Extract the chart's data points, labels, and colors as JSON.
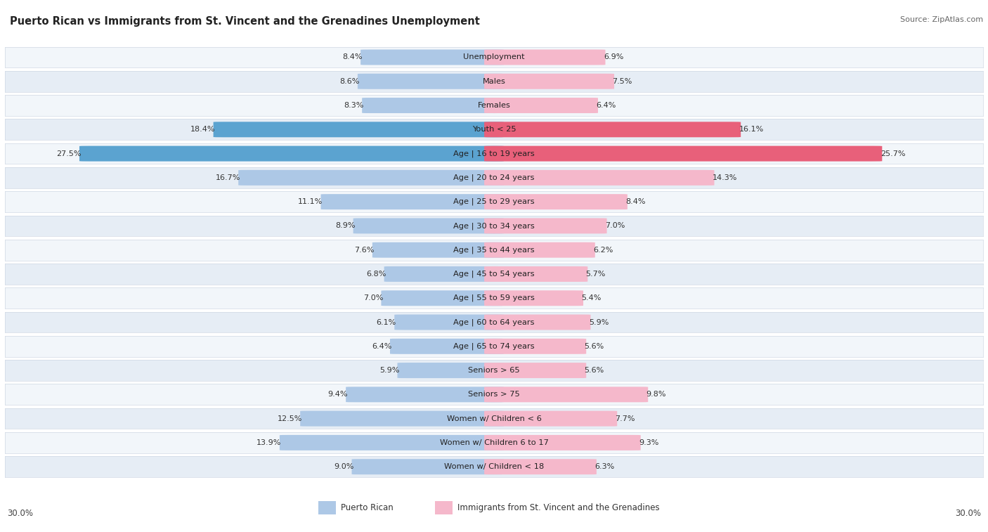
{
  "title": "Puerto Rican vs Immigrants from St. Vincent and the Grenadines Unemployment",
  "source": "Source: ZipAtlas.com",
  "categories": [
    "Unemployment",
    "Males",
    "Females",
    "Youth < 25",
    "Age | 16 to 19 years",
    "Age | 20 to 24 years",
    "Age | 25 to 29 years",
    "Age | 30 to 34 years",
    "Age | 35 to 44 years",
    "Age | 45 to 54 years",
    "Age | 55 to 59 years",
    "Age | 60 to 64 years",
    "Age | 65 to 74 years",
    "Seniors > 65",
    "Seniors > 75",
    "Women w/ Children < 6",
    "Women w/ Children 6 to 17",
    "Women w/ Children < 18"
  ],
  "left_values": [
    8.4,
    8.6,
    8.3,
    18.4,
    27.5,
    16.7,
    11.1,
    8.9,
    7.6,
    6.8,
    7.0,
    6.1,
    6.4,
    5.9,
    9.4,
    12.5,
    13.9,
    9.0
  ],
  "right_values": [
    6.9,
    7.5,
    6.4,
    16.1,
    25.7,
    14.3,
    8.4,
    7.0,
    6.2,
    5.7,
    5.4,
    5.9,
    5.6,
    5.6,
    9.8,
    7.7,
    9.3,
    6.3
  ],
  "left_color_normal": "#adc8e6",
  "right_color_normal": "#f5b8cb",
  "left_color_highlight": "#5ba3d0",
  "right_color_highlight": "#e8607a",
  "highlight_rows": [
    3,
    4
  ],
  "row_bg_light": "#f2f6fa",
  "row_bg_dark": "#e6edf5",
  "row_border_color": "#d0d8e4",
  "legend_left": "Puerto Rican",
  "legend_right": "Immigrants from St. Vincent and the Grenadines",
  "max_val": 30.0,
  "axis_label": "30.0%"
}
